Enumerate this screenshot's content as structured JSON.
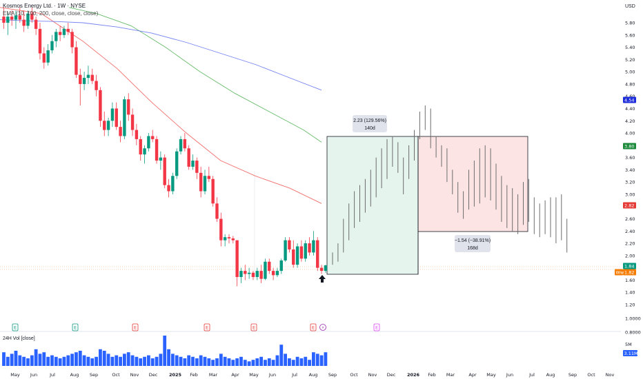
{
  "header": {
    "symbol_line": "Kosmos Energy Ltd. · 1W · NYSE",
    "ema_line": "EMA (10, 100, 200, close, close, close)"
  },
  "currency": "USD",
  "volume_label": "24H Vol [close]",
  "chart_data": {
    "type": "candlestick",
    "interval": "1W",
    "price_ticks": [
      "5.80",
      "5.60",
      "5.40",
      "5.20",
      "5.00",
      "4.80",
      "4.60",
      "4.40",
      "4.20",
      "4.00",
      "3.80",
      "3.60",
      "3.40",
      "3.20",
      "3.00",
      "2.80",
      "2.60",
      "2.40",
      "2.20",
      "2.00",
      "1.80",
      "1.60",
      "1.40",
      "1.20",
      "1.0000",
      "0.8000"
    ],
    "time_ticks": [
      {
        "label": "May",
        "x": 22
      },
      {
        "label": "Jun",
        "x": 49
      },
      {
        "label": "Jul",
        "x": 76
      },
      {
        "label": "Aug",
        "x": 108
      },
      {
        "label": "Sep",
        "x": 136
      },
      {
        "label": "Oct",
        "x": 168
      },
      {
        "label": "Nov",
        "x": 195
      },
      {
        "label": "Dec",
        "x": 222
      },
      {
        "label": "2025",
        "x": 254,
        "bold": true
      },
      {
        "label": "Feb",
        "x": 281
      },
      {
        "label": "Mar",
        "x": 309
      },
      {
        "label": "Apr",
        "x": 341
      },
      {
        "label": "May",
        "x": 368
      },
      {
        "label": "Jun",
        "x": 395
      },
      {
        "label": "Jul",
        "x": 427
      },
      {
        "label": "Aug",
        "x": 454
      },
      {
        "label": "Sep",
        "x": 482
      },
      {
        "label": "Oct",
        "x": 513
      },
      {
        "label": "Nov",
        "x": 540
      },
      {
        "label": "Dec",
        "x": 567
      },
      {
        "label": "2026",
        "x": 599,
        "bold": true
      },
      {
        "label": "Feb",
        "x": 626
      },
      {
        "label": "Mar",
        "x": 653
      },
      {
        "label": "Apr",
        "x": 685
      },
      {
        "label": "May",
        "x": 712
      },
      {
        "label": "Jun",
        "x": 739
      },
      {
        "label": "Jul",
        "x": 771
      },
      {
        "label": "Aug",
        "x": 798
      },
      {
        "label": "Sep",
        "x": 830
      },
      {
        "label": "Oct",
        "x": 857
      },
      {
        "label": "Nov",
        "x": 884
      }
    ],
    "candles": [
      [
        5.9,
        6.05,
        5.7,
        5.8
      ],
      [
        5.8,
        5.95,
        5.6,
        5.9
      ],
      [
        5.9,
        6.0,
        5.75,
        5.85
      ],
      [
        5.85,
        6.0,
        5.7,
        5.92
      ],
      [
        5.92,
        6.05,
        5.8,
        5.85
      ],
      [
        5.85,
        6.0,
        5.65,
        5.75
      ],
      [
        5.75,
        6.0,
        5.7,
        5.95
      ],
      [
        5.95,
        6.05,
        5.8,
        5.85
      ],
      [
        5.85,
        5.9,
        5.6,
        5.7
      ],
      [
        5.7,
        5.8,
        5.2,
        5.3
      ],
      [
        5.3,
        5.4,
        5.05,
        5.15
      ],
      [
        5.15,
        5.45,
        5.1,
        5.35
      ],
      [
        5.35,
        5.6,
        5.3,
        5.5
      ],
      [
        5.5,
        5.7,
        5.4,
        5.65
      ],
      [
        5.65,
        5.75,
        5.5,
        5.6
      ],
      [
        5.6,
        5.75,
        5.55,
        5.7
      ],
      [
        5.7,
        5.8,
        5.6,
        5.65
      ],
      [
        5.65,
        5.7,
        5.3,
        5.4
      ],
      [
        5.4,
        5.5,
        4.9,
        4.95
      ],
      [
        4.95,
        5.05,
        4.45,
        4.8
      ],
      [
        4.8,
        5.0,
        4.7,
        4.9
      ],
      [
        4.9,
        5.1,
        4.8,
        4.95
      ],
      [
        4.95,
        5.05,
        4.8,
        4.85
      ],
      [
        4.85,
        4.95,
        4.6,
        4.7
      ],
      [
        4.7,
        4.75,
        4.1,
        4.2
      ],
      [
        4.2,
        4.35,
        3.95,
        4.05
      ],
      [
        4.05,
        4.25,
        3.95,
        4.2
      ],
      [
        4.2,
        4.5,
        4.1,
        4.4
      ],
      [
        4.4,
        4.5,
        4.05,
        4.1
      ],
      [
        4.1,
        4.2,
        3.85,
        3.95
      ],
      [
        3.95,
        4.6,
        3.9,
        4.55
      ],
      [
        4.55,
        4.65,
        4.2,
        4.3
      ],
      [
        4.3,
        4.4,
        3.95,
        4.05
      ],
      [
        4.05,
        4.15,
        3.8,
        3.9
      ],
      [
        3.9,
        3.95,
        3.55,
        3.65
      ],
      [
        3.65,
        3.8,
        3.5,
        3.75
      ],
      [
        3.75,
        4.0,
        3.7,
        3.95
      ],
      [
        3.95,
        4.05,
        3.85,
        3.9
      ],
      [
        3.9,
        3.95,
        3.5,
        3.55
      ],
      [
        3.55,
        3.7,
        3.4,
        3.6
      ],
      [
        3.6,
        3.65,
        3.1,
        3.15
      ],
      [
        3.15,
        3.25,
        2.95,
        3.05
      ],
      [
        3.05,
        3.35,
        3.0,
        3.3
      ],
      [
        3.3,
        3.75,
        3.25,
        3.7
      ],
      [
        3.7,
        3.95,
        3.65,
        3.9
      ],
      [
        3.9,
        4.0,
        3.7,
        3.75
      ],
      [
        3.75,
        3.8,
        3.4,
        3.45
      ],
      [
        3.45,
        3.65,
        3.4,
        3.55
      ],
      [
        3.55,
        3.6,
        3.25,
        3.35
      ],
      [
        3.35,
        3.45,
        2.95,
        3.05
      ],
      [
        3.05,
        3.4,
        3.0,
        3.3
      ],
      [
        3.3,
        3.45,
        3.2,
        3.25
      ],
      [
        3.25,
        3.3,
        2.8,
        2.85
      ],
      [
        2.85,
        2.95,
        2.55,
        2.6
      ],
      [
        2.6,
        2.7,
        2.15,
        2.25
      ],
      [
        2.25,
        2.35,
        2.15,
        2.3
      ],
      [
        2.3,
        2.35,
        2.2,
        2.28
      ],
      [
        2.28,
        2.32,
        2.2,
        2.25
      ],
      [
        2.25,
        2.25,
        1.5,
        1.65
      ],
      [
        1.65,
        1.8,
        1.55,
        1.75
      ],
      [
        1.75,
        1.85,
        1.6,
        1.7
      ],
      [
        1.7,
        1.8,
        1.62,
        1.72
      ],
      [
        1.72,
        1.75,
        1.6,
        1.65
      ],
      [
        1.65,
        1.8,
        1.6,
        1.75
      ],
      [
        1.75,
        1.85,
        1.55,
        1.62
      ],
      [
        1.62,
        1.95,
        1.6,
        1.9
      ],
      [
        1.9,
        1.95,
        1.7,
        1.75
      ],
      [
        1.75,
        1.8,
        1.6,
        1.68
      ],
      [
        1.68,
        1.8,
        1.65,
        1.75
      ],
      [
        1.75,
        1.95,
        1.7,
        1.92
      ],
      [
        1.92,
        2.3,
        1.9,
        2.25
      ],
      [
        2.25,
        2.3,
        2.05,
        2.1
      ],
      [
        2.1,
        2.25,
        1.8,
        1.85
      ],
      [
        1.85,
        2.2,
        1.8,
        2.15
      ],
      [
        2.15,
        2.25,
        1.9,
        1.95
      ],
      [
        1.95,
        2.25,
        1.9,
        2.2
      ],
      [
        2.2,
        2.3,
        2.0,
        2.05
      ],
      [
        2.05,
        2.4,
        2.0,
        2.25
      ],
      [
        2.25,
        2.3,
        1.75,
        1.8
      ],
      [
        1.8,
        1.85,
        1.7,
        1.75
      ],
      [
        1.75,
        1.85,
        1.72,
        1.84
      ]
    ],
    "ghost_bars": [
      [
        1.85,
        2.05
      ],
      [
        1.9,
        2.2
      ],
      [
        2.05,
        2.6
      ],
      [
        2.25,
        2.85
      ],
      [
        2.45,
        3.05
      ],
      [
        2.55,
        3.15
      ],
      [
        2.7,
        3.25
      ],
      [
        2.8,
        3.4
      ],
      [
        2.95,
        3.6
      ],
      [
        3.1,
        3.75
      ],
      [
        3.25,
        3.9
      ],
      [
        3.45,
        3.95
      ],
      [
        3.35,
        3.85
      ],
      [
        3.0,
        3.6
      ],
      [
        3.25,
        3.8
      ],
      [
        3.55,
        4.05
      ],
      [
        3.9,
        4.35
      ],
      [
        4.05,
        4.45
      ],
      [
        3.75,
        4.4
      ],
      [
        3.6,
        3.95
      ],
      [
        3.45,
        3.8
      ],
      [
        3.2,
        3.75
      ],
      [
        3.0,
        3.4
      ],
      [
        2.7,
        3.2
      ],
      [
        2.6,
        3.05
      ],
      [
        2.75,
        3.4
      ],
      [
        2.8,
        3.55
      ],
      [
        2.85,
        3.75
      ],
      [
        2.95,
        3.8
      ],
      [
        2.9,
        3.75
      ],
      [
        2.75,
        3.5
      ],
      [
        2.55,
        3.3
      ],
      [
        2.45,
        3.15
      ],
      [
        2.4,
        3.1
      ],
      [
        2.35,
        3.0
      ],
      [
        2.5,
        3.2
      ],
      [
        2.55,
        3.25
      ],
      [
        2.35,
        2.95
      ],
      [
        2.3,
        2.85
      ],
      [
        2.35,
        2.9
      ],
      [
        2.3,
        2.95
      ],
      [
        2.2,
        2.95
      ],
      [
        2.25,
        3.0
      ],
      [
        2.05,
        2.6
      ]
    ],
    "volume_axis_label": "5M",
    "volume_last_badge": "3.11M",
    "volumes": [
      0.45,
      0.3,
      0.4,
      0.5,
      0.35,
      0.3,
      0.25,
      0.35,
      0.55,
      0.4,
      0.45,
      0.3,
      0.35,
      0.3,
      0.25,
      0.3,
      0.35,
      0.4,
      0.45,
      0.5,
      0.35,
      0.3,
      0.25,
      0.3,
      0.55,
      0.5,
      0.4,
      0.3,
      0.35,
      0.3,
      0.4,
      0.45,
      0.35,
      0.3,
      0.25,
      0.3,
      0.35,
      0.25,
      0.3,
      0.4,
      1.0,
      0.55,
      0.4,
      0.35,
      0.3,
      0.25,
      0.35,
      0.3,
      0.25,
      0.35,
      0.3,
      0.25,
      0.2,
      0.25,
      0.4,
      0.3,
      0.25,
      0.2,
      0.25,
      0.3,
      0.2,
      0.15,
      0.2,
      0.25,
      0.3,
      0.2,
      0.25,
      0.2,
      0.35,
      0.7,
      0.4,
      0.25,
      0.2,
      0.3,
      0.25,
      0.3,
      0.2,
      0.45,
      0.4,
      0.35,
      0.45
    ],
    "ema_lines": [
      {
        "name": "EMA 10",
        "color": "#ef5350",
        "points": [
          [
            0,
            6.05
          ],
          [
            60,
            5.95
          ],
          [
            120,
            5.5
          ],
          [
            170,
            5.05
          ],
          [
            220,
            4.5
          ],
          [
            270,
            4.0
          ],
          [
            320,
            3.55
          ],
          [
            370,
            3.3
          ],
          [
            420,
            3.1
          ],
          [
            466,
            2.85
          ]
        ]
      },
      {
        "name": "EMA 100",
        "color": "#4caf50",
        "points": [
          [
            100,
            6.05
          ],
          [
            140,
            5.95
          ],
          [
            190,
            5.75
          ],
          [
            240,
            5.4
          ],
          [
            290,
            5.0
          ],
          [
            340,
            4.65
          ],
          [
            390,
            4.35
          ],
          [
            440,
            4.05
          ],
          [
            466,
            3.85
          ]
        ]
      },
      {
        "name": "EMA 200",
        "color": "#5b6cf0",
        "points": [
          [
            0,
            5.85
          ],
          [
            40,
            5.83
          ],
          [
            80,
            5.82
          ],
          [
            120,
            5.8
          ],
          [
            170,
            5.73
          ],
          [
            220,
            5.63
          ],
          [
            270,
            5.48
          ],
          [
            320,
            5.3
          ],
          [
            370,
            5.12
          ],
          [
            420,
            4.9
          ],
          [
            466,
            4.7
          ]
        ]
      }
    ],
    "last_price": "1.84",
    "price_badges": [
      {
        "value": "4.54",
        "color": "#1c2cdb"
      },
      {
        "value": "3.80",
        "color": "#1b8a3a"
      },
      {
        "value": "2.82",
        "color": "#e53935"
      },
      {
        "value": "1.84",
        "color": "#089981"
      },
      {
        "value": "1.82",
        "color": "#f57c00",
        "prefix": "Ww"
      }
    ],
    "long_box": {
      "label_value": "2.23 (129.56%)",
      "label_days": "140d",
      "color": "#e6f4ee"
    },
    "short_box": {
      "label_value": "−1.54 (−38.91%)",
      "label_days": "168d",
      "color": "#fce4e4"
    },
    "events": [
      {
        "x": 22,
        "type": "E",
        "color": "#089981"
      },
      {
        "x": 109,
        "type": "E",
        "color": "#089981"
      },
      {
        "x": 196,
        "type": "E",
        "color": "#e53935"
      },
      {
        "x": 300,
        "type": "E",
        "color": "#e53935"
      },
      {
        "x": 368,
        "type": "E",
        "color": "#e53935"
      },
      {
        "x": 454,
        "type": "E",
        "color": "#e53935"
      },
      {
        "x": 468,
        "type": "⚡",
        "color": "#9c27b0"
      },
      {
        "x": 546,
        "type": "E",
        "color": "#e040fb"
      }
    ]
  }
}
